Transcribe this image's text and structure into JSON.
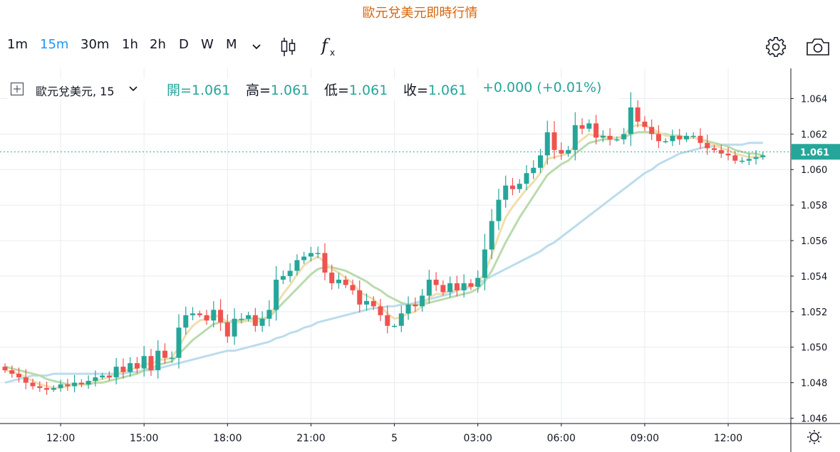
{
  "title": "歐元兌美元即時行情",
  "toolbar": {
    "intervals": [
      "1m",
      "15m",
      "30m",
      "1h",
      "2h",
      "D",
      "W",
      "M"
    ],
    "active_interval": "15m",
    "icons": [
      "chevron-down-icon",
      "candlestick-icon",
      "indicators-fx-icon",
      "settings-gear-icon",
      "camera-icon"
    ]
  },
  "legend": {
    "symbol": "歐元兌美元, 15",
    "open_label": "開=",
    "open_value": "1.061",
    "high_label": "高=",
    "high_value": "1.061",
    "low_label": "低=",
    "low_value": "1.061",
    "close_label": "收=",
    "close_value": "1.061",
    "change": "+0.000 (+0.01%)"
  },
  "colors": {
    "up": "#26a69a",
    "down": "#ef5350",
    "ma_fast": "#f0deac",
    "ma_mid": "#b9dbad",
    "ma_slow": "#bcdcec",
    "last_price_line": "#26a69a",
    "title": "#d9650b",
    "accent": "#2196f3"
  },
  "chart_data": {
    "type": "candlestick",
    "title": "歐元兌美元即時行情",
    "x_ticks": [
      "12:00",
      "15:00",
      "18:00",
      "21:00",
      "5",
      "03:00",
      "06:00",
      "09:00",
      "12:00"
    ],
    "y_ticks": [
      "1.064",
      "1.062",
      "1.060",
      "1.058",
      "1.056",
      "1.054",
      "1.052",
      "1.050",
      "1.048",
      "1.046"
    ],
    "ylim": [
      1.0457,
      1.0657
    ],
    "last_price": 1.061,
    "last_price_label": "1.061",
    "interval_minutes": 15,
    "candles_close": [
      1.0487,
      1.0485,
      1.0483,
      1.048,
      1.0478,
      1.0477,
      1.0476,
      1.0477,
      1.0479,
      1.0478,
      1.048,
      1.0479,
      1.0481,
      1.0483,
      1.0484,
      1.0483,
      1.0489,
      1.0486,
      1.0491,
      1.0488,
      1.0495,
      1.0487,
      1.0498,
      1.0494,
      1.0494,
      1.0511,
      1.0518,
      1.0519,
      1.0518,
      1.0515,
      1.0521,
      1.0514,
      1.0506,
      1.0516,
      1.0516,
      1.0518,
      1.0512,
      1.0516,
      1.0521,
      1.0538,
      1.054,
      1.0543,
      1.0549,
      1.0551,
      1.0553,
      1.0553,
      1.0542,
      1.0536,
      1.0538,
      1.0535,
      1.0532,
      1.0524,
      1.0526,
      1.0523,
      1.0518,
      1.0512,
      1.0512,
      1.0519,
      1.0524,
      1.0523,
      1.0529,
      1.0538,
      1.0535,
      1.0531,
      1.0536,
      1.0532,
      1.0536,
      1.0534,
      1.0539,
      1.0555,
      1.0571,
      1.0583,
      1.0591,
      1.0589,
      1.0592,
      1.0598,
      1.0601,
      1.0608,
      1.0621,
      1.0611,
      1.0609,
      1.0611,
      1.0625,
      1.0623,
      1.0626,
      1.0618,
      1.0619,
      1.0617,
      1.0617,
      1.062,
      1.0635,
      1.0627,
      1.0624,
      1.062,
      1.0616,
      1.0616,
      1.0619,
      1.0617,
      1.0619,
      1.0619,
      1.0615,
      1.0612,
      1.0611,
      1.0609,
      1.0608,
      1.0605,
      1.0605,
      1.0606,
      1.0607,
      1.0608
    ],
    "candles_open_first": 1.0489,
    "ma_fast": [
      1.0487,
      1.0486,
      1.0485,
      1.0483,
      1.0481,
      1.0479,
      1.0478,
      1.0477,
      1.0477,
      1.0478,
      1.0479,
      1.0479,
      1.048,
      1.0481,
      1.0482,
      1.0483,
      1.0485,
      1.0486,
      1.0488,
      1.0488,
      1.0491,
      1.049,
      1.0493,
      1.0493,
      1.0494,
      1.05,
      1.0507,
      1.0512,
      1.0515,
      1.0516,
      1.0518,
      1.0517,
      1.0514,
      1.0514,
      1.0514,
      1.0515,
      1.0514,
      1.0515,
      1.0517,
      1.0524,
      1.053,
      1.0535,
      1.0541,
      1.0546,
      1.0549,
      1.0551,
      1.0548,
      1.0544,
      1.0542,
      1.0539,
      1.0536,
      1.0531,
      1.0529,
      1.0527,
      1.0523,
      1.0519,
      1.0516,
      1.0517,
      1.0519,
      1.052,
      1.0523,
      1.0528,
      1.053,
      1.053,
      1.0532,
      1.0532,
      1.0534,
      1.0534,
      1.0536,
      1.0542,
      1.0552,
      1.0563,
      1.0573,
      1.0579,
      1.0584,
      1.0589,
      1.0593,
      1.0598,
      1.0606,
      1.0607,
      1.0608,
      1.0609,
      1.0614,
      1.0617,
      1.062,
      1.0619,
      1.0619,
      1.0618,
      1.0618,
      1.0619,
      1.0624,
      1.0625,
      1.0625,
      1.0623,
      1.0621,
      1.0619,
      1.0619,
      1.0618,
      1.0618,
      1.0618,
      1.0617,
      1.0615,
      1.0614,
      1.0612,
      1.0611,
      1.0609,
      1.0608,
      1.0607,
      1.0607,
      1.0607
    ],
    "ma_mid": [
      1.0489,
      1.0488,
      1.0487,
      1.0486,
      1.0485,
      1.0484,
      1.0482,
      1.0481,
      1.048,
      1.0479,
      1.0479,
      1.0479,
      1.0479,
      1.048,
      1.048,
      1.0481,
      1.0482,
      1.0483,
      1.0484,
      1.0485,
      1.0487,
      1.0488,
      1.049,
      1.0491,
      1.0492,
      1.0496,
      1.05,
      1.0504,
      1.0507,
      1.051,
      1.0513,
      1.0514,
      1.0514,
      1.0515,
      1.0515,
      1.0516,
      1.0516,
      1.0516,
      1.0517,
      1.0521,
      1.0525,
      1.0529,
      1.0533,
      1.0537,
      1.0541,
      1.0544,
      1.0545,
      1.0545,
      1.0544,
      1.0543,
      1.0541,
      1.0539,
      1.0537,
      1.0534,
      1.0532,
      1.0529,
      1.0527,
      1.0525,
      1.0524,
      1.0524,
      1.0524,
      1.0525,
      1.0526,
      1.0527,
      1.0528,
      1.0529,
      1.053,
      1.0531,
      1.0533,
      1.0537,
      1.0543,
      1.0551,
      1.0559,
      1.0566,
      1.0573,
      1.0579,
      1.0585,
      1.0591,
      1.0597,
      1.06,
      1.0603,
      1.0605,
      1.0609,
      1.0612,
      1.0615,
      1.0616,
      1.0617,
      1.0617,
      1.0618,
      1.0618,
      1.062,
      1.0621,
      1.0621,
      1.0621,
      1.062,
      1.062,
      1.0619,
      1.0619,
      1.0618,
      1.0618,
      1.0617,
      1.0616,
      1.0615,
      1.0614,
      1.0613,
      1.0611,
      1.061,
      1.0609,
      1.0609,
      1.0608
    ],
    "ma_slow": [
      1.048,
      1.0481,
      1.0482,
      1.0483,
      1.0484,
      1.0484,
      1.0484,
      1.0485,
      1.0485,
      1.0485,
      1.0485,
      1.0485,
      1.0485,
      1.0485,
      1.0485,
      1.0485,
      1.0485,
      1.0485,
      1.0486,
      1.0486,
      1.0487,
      1.0487,
      1.0488,
      1.0489,
      1.049,
      1.0491,
      1.0492,
      1.0493,
      1.0494,
      1.0495,
      1.0496,
      1.0497,
      1.0498,
      1.0498,
      1.0499,
      1.05,
      1.0501,
      1.0502,
      1.0503,
      1.0505,
      1.0506,
      1.0508,
      1.0509,
      1.0511,
      1.0512,
      1.0514,
      1.0515,
      1.0516,
      1.0517,
      1.0518,
      1.0519,
      1.052,
      1.0521,
      1.0522,
      1.0522,
      1.0523,
      1.0523,
      1.0524,
      1.0524,
      1.0525,
      1.0526,
      1.0527,
      1.0528,
      1.0529,
      1.053,
      1.0532,
      1.0533,
      1.0534,
      1.0536,
      1.0538,
      1.054,
      1.0542,
      1.0544,
      1.0546,
      1.0548,
      1.055,
      1.0552,
      1.0554,
      1.0557,
      1.0559,
      1.0562,
      1.0565,
      1.0568,
      1.0571,
      1.0574,
      1.0577,
      1.058,
      1.0583,
      1.0586,
      1.0589,
      1.0592,
      1.0595,
      1.0598,
      1.06,
      1.0603,
      1.0605,
      1.0607,
      1.0609,
      1.061,
      1.0611,
      1.0612,
      1.0613,
      1.0613,
      1.0614,
      1.0614,
      1.0614,
      1.0614,
      1.0615,
      1.0615,
      1.0615
    ]
  }
}
